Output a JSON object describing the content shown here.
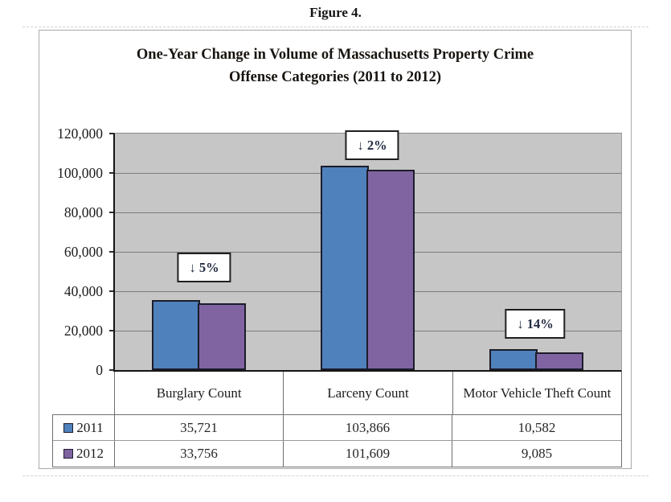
{
  "figure_caption": "Figure 4.",
  "chart_data": {
    "type": "bar",
    "title": "One-Year Change in Volume of Massachusetts Property Crime Offense Categories (2011 to 2012)",
    "title_lines": [
      "One-Year Change in Volume of Massachusetts Property Crime",
      "Offense Categories (2011 to 2012)"
    ],
    "categories": [
      "Burglary Count",
      "Larceny Count",
      "Motor Vehicle Theft Count"
    ],
    "series": [
      {
        "name": "2011",
        "color": "#4f81bd",
        "values": [
          35721,
          103866,
          10582
        ],
        "value_labels": [
          "35,721",
          "103,866",
          "10,582"
        ]
      },
      {
        "name": "2012",
        "color": "#8064a2",
        "values": [
          33756,
          101609,
          9085
        ],
        "value_labels": [
          "33,756",
          "101,609",
          "9,085"
        ]
      }
    ],
    "annotations": [
      {
        "text": "↓ 5%",
        "category": "Burglary Count"
      },
      {
        "text": "↓ 2%",
        "category": "Larceny Count"
      },
      {
        "text": "↓ 14%",
        "category": "Motor Vehicle Theft Count"
      }
    ],
    "ylim": [
      0,
      120000
    ],
    "ytick_interval": 20000,
    "ytick_labels": [
      "120,000",
      "100,000",
      "80,000",
      "60,000",
      "40,000",
      "20,000",
      "0"
    ],
    "grid": true,
    "plot_background": "#c5c6c5",
    "bar_border_color": "#1c1c2a",
    "legend_position": "table-rows-left"
  }
}
